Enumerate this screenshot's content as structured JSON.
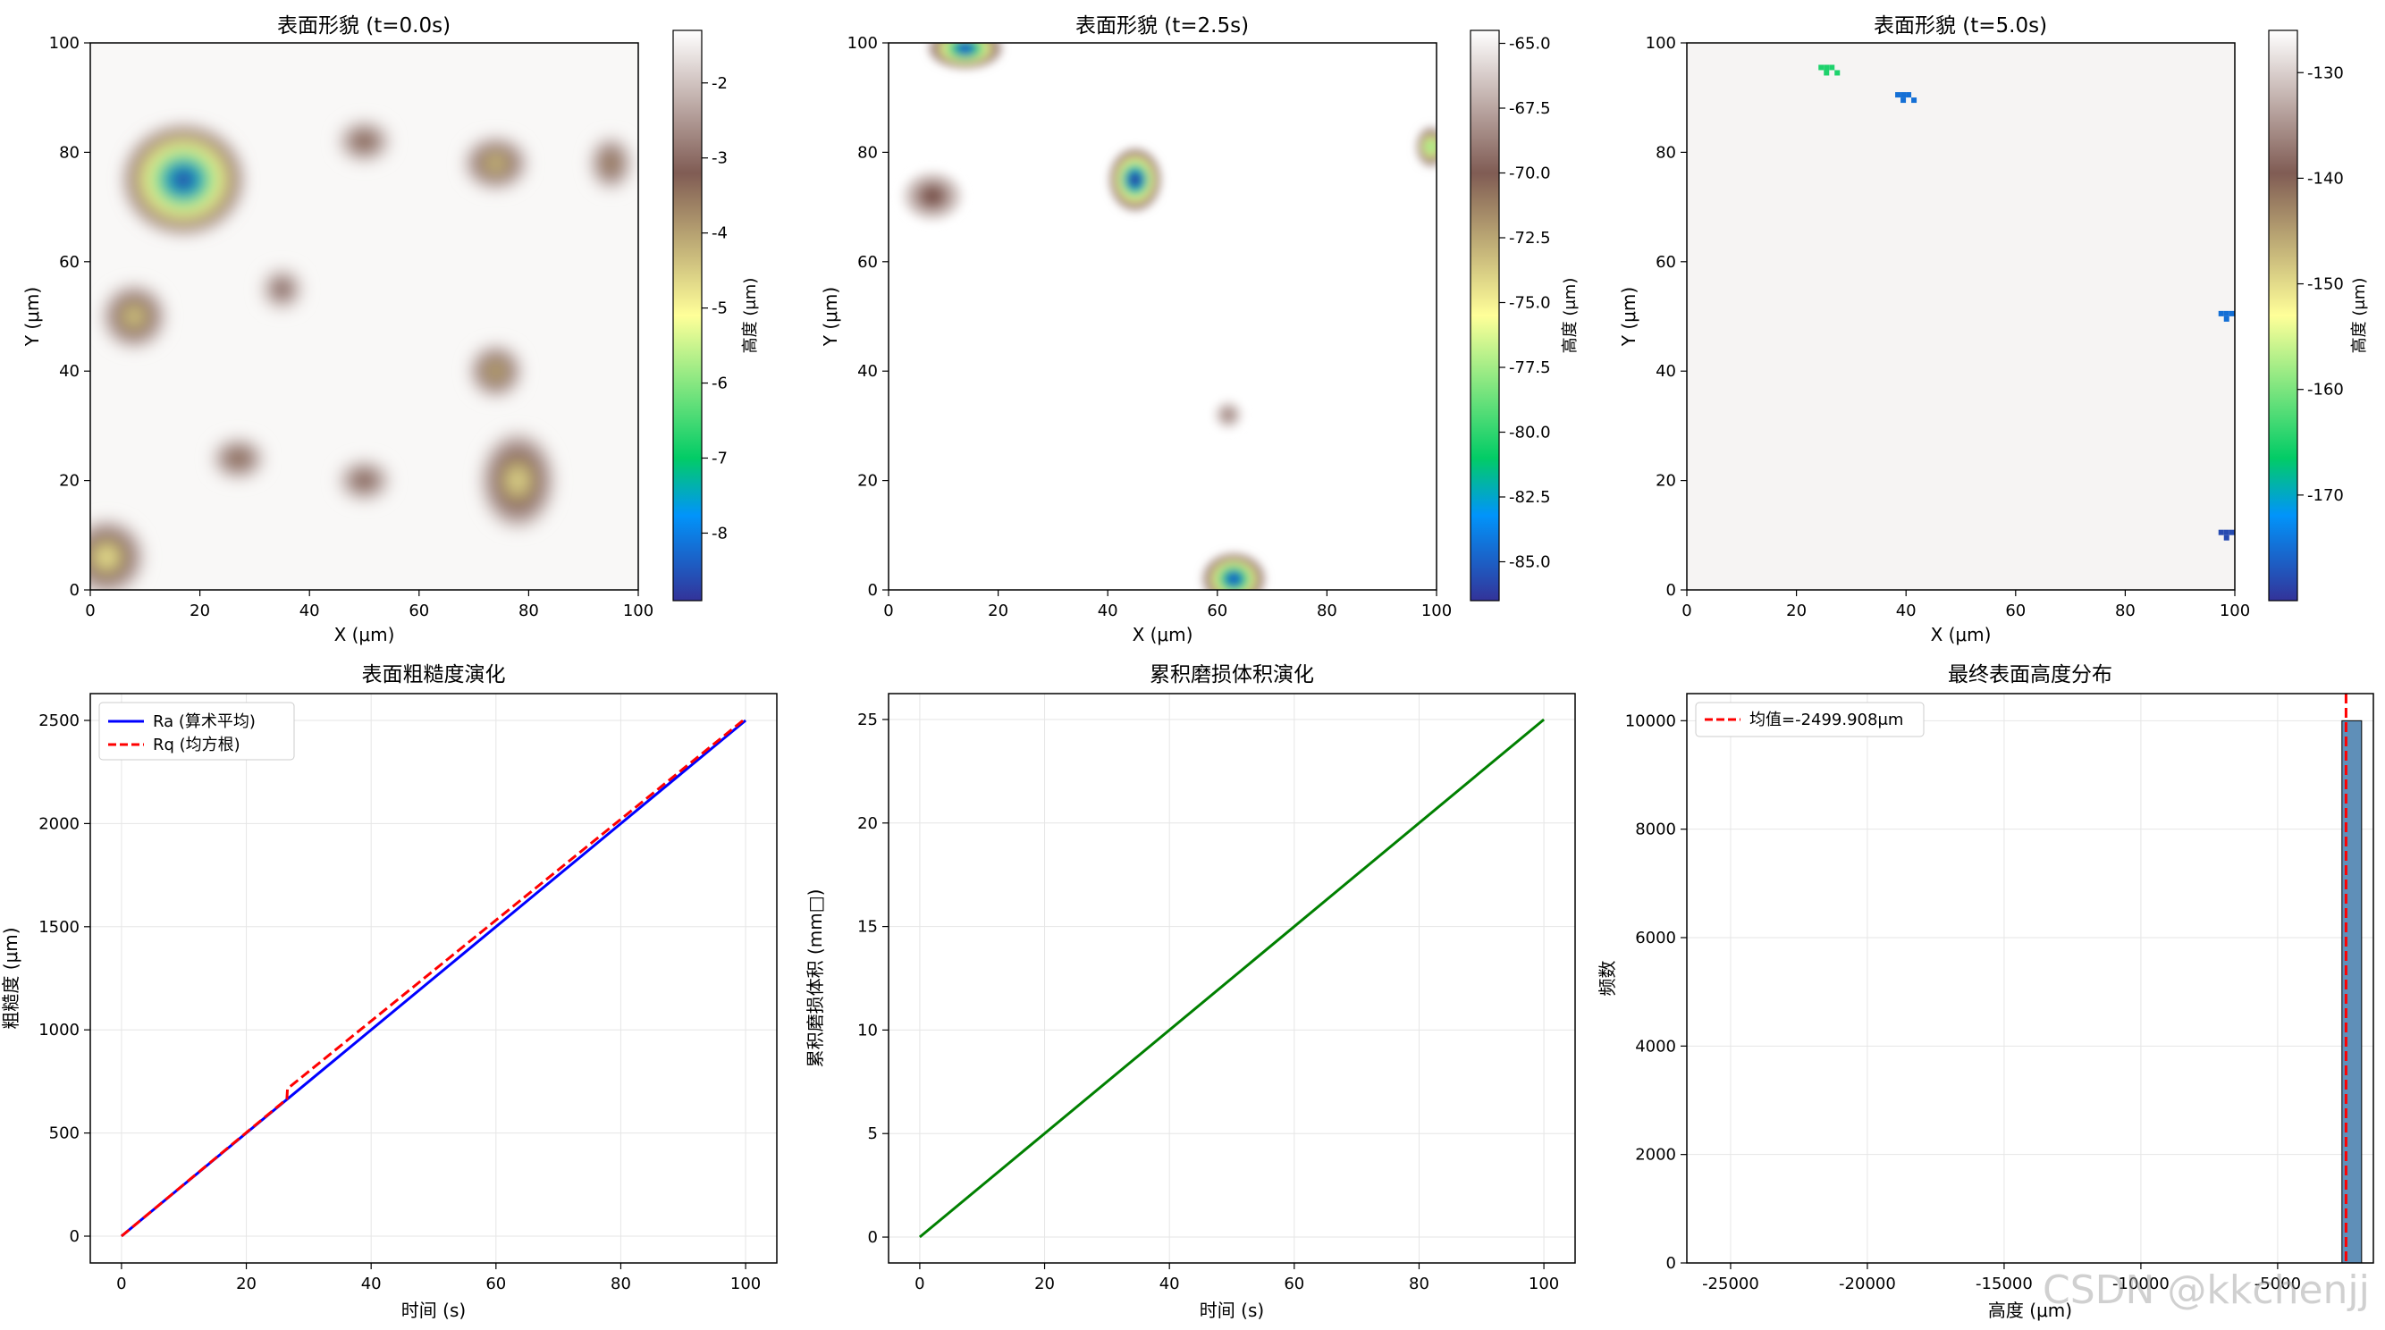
{
  "chart_data": [
    {
      "type": "heatmap",
      "title": "表面形貌 (t=0.0s)",
      "xlabel": "X (μm)",
      "ylabel": "Y (μm)",
      "xlim": [
        0,
        100
      ],
      "ylim": [
        0,
        100
      ],
      "xticks": [
        "0",
        "20",
        "40",
        "60",
        "80",
        "100"
      ],
      "yticks": [
        "0",
        "20",
        "40",
        "60",
        "80",
        "100"
      ],
      "colorbar": {
        "label": "高度 (μm)",
        "range": [
          -8.9,
          -1.3
        ],
        "ticks": [
          "-2",
          "-3",
          "-4",
          "-5",
          "-6",
          "-7",
          "-8"
        ],
        "tick_values": [
          -2,
          -3,
          -4,
          -5,
          -6,
          -7,
          -8
        ]
      },
      "background": "#f9f8f7",
      "features": [
        {
          "x": 17,
          "y": 75,
          "rx": 10,
          "ry": 9,
          "value": -8.7
        },
        {
          "x": 8,
          "y": 50,
          "rx": 5,
          "ry": 5,
          "value": -4.5
        },
        {
          "x": 3,
          "y": 6,
          "rx": 6,
          "ry": 6,
          "value": -4.8
        },
        {
          "x": 78,
          "y": 20,
          "rx": 6,
          "ry": 8,
          "value": -4.6
        },
        {
          "x": 74,
          "y": 78,
          "rx": 5,
          "ry": 4,
          "value": -4.4
        },
        {
          "x": 74,
          "y": 40,
          "rx": 4,
          "ry": 4,
          "value": -4.2
        },
        {
          "x": 50,
          "y": 82,
          "rx": 4,
          "ry": 3,
          "value": -3.5
        },
        {
          "x": 35,
          "y": 55,
          "rx": 3,
          "ry": 3,
          "value": -3.2
        },
        {
          "x": 50,
          "y": 20,
          "rx": 4,
          "ry": 3,
          "value": -3.4
        },
        {
          "x": 27,
          "y": 24,
          "rx": 4,
          "ry": 3,
          "value": -3.6
        },
        {
          "x": 95,
          "y": 78,
          "rx": 3,
          "ry": 4,
          "value": -3.8
        }
      ]
    },
    {
      "type": "heatmap",
      "title": "表面形貌 (t=2.5s)",
      "xlabel": "X (μm)",
      "ylabel": "Y (μm)",
      "xlim": [
        0,
        100
      ],
      "ylim": [
        0,
        100
      ],
      "xticks": [
        "0",
        "20",
        "40",
        "60",
        "80",
        "100"
      ],
      "yticks": [
        "0",
        "20",
        "40",
        "60",
        "80",
        "100"
      ],
      "colorbar": {
        "label": "高度 (μm)",
        "range": [
          -86.5,
          -64.5
        ],
        "ticks": [
          "-65.0",
          "-67.5",
          "-70.0",
          "-72.5",
          "-75.0",
          "-77.5",
          "-80.0",
          "-82.5",
          "-85.0"
        ],
        "tick_values": [
          -65,
          -67.5,
          -70,
          -72.5,
          -75,
          -77.5,
          -80,
          -82.5,
          -85
        ]
      },
      "background": "#ffffff",
      "features": [
        {
          "x": 45,
          "y": 75,
          "rx": 4,
          "ry": 5,
          "value": -86
        },
        {
          "x": 63,
          "y": 2,
          "rx": 5,
          "ry": 4,
          "value": -85
        },
        {
          "x": 14,
          "y": 99,
          "rx": 6,
          "ry": 3,
          "value": -85
        },
        {
          "x": 99,
          "y": 81,
          "rx": 2,
          "ry": 3,
          "value": -78
        },
        {
          "x": 8,
          "y": 72,
          "rx": 5,
          "ry": 4,
          "value": -70
        },
        {
          "x": 62,
          "y": 32,
          "rx": 2,
          "ry": 2,
          "value": -68
        }
      ]
    },
    {
      "type": "heatmap",
      "title": "表面形貌 (t=5.0s)",
      "xlabel": "X (μm)",
      "ylabel": "Y (μm)",
      "xlim": [
        0,
        100
      ],
      "ylim": [
        0,
        100
      ],
      "xticks": [
        "0",
        "20",
        "40",
        "60",
        "80",
        "100"
      ],
      "yticks": [
        "0",
        "20",
        "40",
        "60",
        "80",
        "100"
      ],
      "colorbar": {
        "label": "高度 (μm)",
        "range": [
          -180,
          -126
        ],
        "ticks": [
          "-130",
          "-140",
          "-150",
          "-160",
          "-170"
        ],
        "tick_values": [
          -130,
          -140,
          -150,
          -160,
          -170
        ]
      },
      "background": "#f6f4f3",
      "features": [
        {
          "x": 39,
          "y": 91,
          "value": -175
        },
        {
          "x": 25,
          "y": 96,
          "value": -165
        },
        {
          "x": 98,
          "y": 51,
          "value": -175
        },
        {
          "x": 98,
          "y": 11,
          "value": -178
        }
      ]
    },
    {
      "type": "line",
      "title": "表面粗糙度演化",
      "xlabel": "时间 (s)",
      "ylabel": "粗糙度 (μm)",
      "xlim": [
        -5,
        105
      ],
      "ylim": [
        -130,
        2630
      ],
      "xticks": [
        0,
        20,
        40,
        60,
        80,
        100
      ],
      "yticks": [
        0,
        500,
        1000,
        1500,
        2000,
        2500
      ],
      "grid": true,
      "legend": "top-left",
      "series": [
        {
          "name": "Ra (算术平均)",
          "color": "#0000ff",
          "style": "solid",
          "x": [
            0,
            100
          ],
          "y": [
            0,
            2500
          ]
        },
        {
          "name": "Rq (均方根)",
          "color": "#ff0000",
          "style": "dashed",
          "x": [
            0,
            26.5,
            26.6,
            100
          ],
          "y": [
            0,
            665,
            715,
            2510
          ]
        }
      ]
    },
    {
      "type": "line",
      "title": "累积磨损体积演化",
      "xlabel": "时间 (s)",
      "ylabel": "累积磨损体积 (mm□)",
      "xlim": [
        -5,
        105
      ],
      "ylim": [
        -1.25,
        26.25
      ],
      "xticks": [
        0,
        20,
        40,
        60,
        80,
        100
      ],
      "yticks": [
        0,
        5,
        10,
        15,
        20,
        25
      ],
      "grid": true,
      "series": [
        {
          "color": "#008000",
          "style": "solid",
          "x": [
            0,
            100
          ],
          "y": [
            0,
            25
          ]
        }
      ]
    },
    {
      "type": "bar",
      "title": "最终表面高度分布",
      "xlabel": "高度 (μm)",
      "ylabel": "频数",
      "xlim": [
        -26600,
        -1500
      ],
      "ylim": [
        0,
        10500
      ],
      "xticks": [
        -25000,
        -20000,
        -15000,
        -10000,
        -5000
      ],
      "xtick_labels": [
        "-25000",
        "-20000",
        "-15000",
        "-10000",
        "-5000"
      ],
      "yticks": [
        0,
        2000,
        4000,
        6000,
        8000,
        10000
      ],
      "grid": true,
      "legend": "top-left",
      "bars": [
        {
          "x0": -2650,
          "x1": -1930,
          "count": 10000
        }
      ],
      "mean_line": {
        "value": -2499.908,
        "label": "均值=-2499.908μm",
        "color": "#ff0000"
      }
    }
  ],
  "watermark": "CSDN @kkchenjj"
}
